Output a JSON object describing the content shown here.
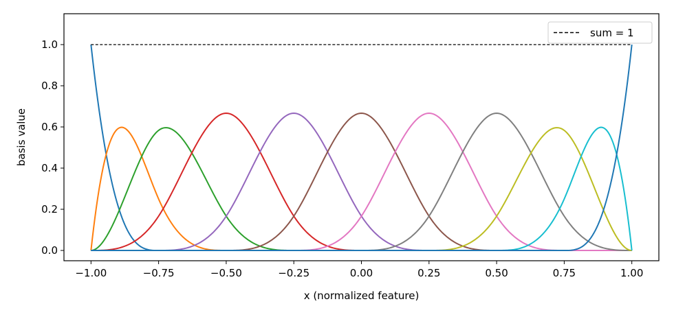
{
  "chart_data": {
    "type": "line",
    "xlabel": "x  (normalized feature)",
    "ylabel": "basis value",
    "xlim": [
      -1.1,
      1.1
    ],
    "ylim": [
      -0.05,
      1.15
    ],
    "x_ticks": [
      "−1.00",
      "−0.75",
      "−0.50",
      "−0.25",
      "0.00",
      "0.25",
      "0.50",
      "0.75",
      "1.00"
    ],
    "x_tick_values": [
      -1.0,
      -0.75,
      -0.5,
      -0.25,
      0.0,
      0.25,
      0.5,
      0.75,
      1.0
    ],
    "y_ticks": [
      "0.0",
      "0.2",
      "0.4",
      "0.6",
      "0.8",
      "1.0"
    ],
    "y_tick_values": [
      0.0,
      0.2,
      0.4,
      0.6,
      0.8,
      1.0
    ],
    "grid": false,
    "legend_position": "top-right",
    "spline": {
      "degree": 3,
      "knots": [
        -1,
        -1,
        -1,
        -1,
        -0.75,
        -0.5,
        -0.25,
        0,
        0.25,
        0.5,
        0.75,
        1,
        1,
        1,
        1
      ]
    },
    "series": [
      {
        "color": "#1f77b4"
      },
      {
        "color": "#ff7f0e"
      },
      {
        "color": "#2ca02c"
      },
      {
        "color": "#d62728"
      },
      {
        "color": "#9467bd"
      },
      {
        "color": "#8c564b"
      },
      {
        "color": "#e377c2"
      },
      {
        "color": "#7f7f7f"
      },
      {
        "color": "#bcbd22"
      },
      {
        "color": "#17becf"
      },
      {
        "color": "#1f77b4"
      },
      {
        "name": "sum = 1",
        "color": "#000000",
        "style": "dashed",
        "value": 1.0
      }
    ]
  }
}
